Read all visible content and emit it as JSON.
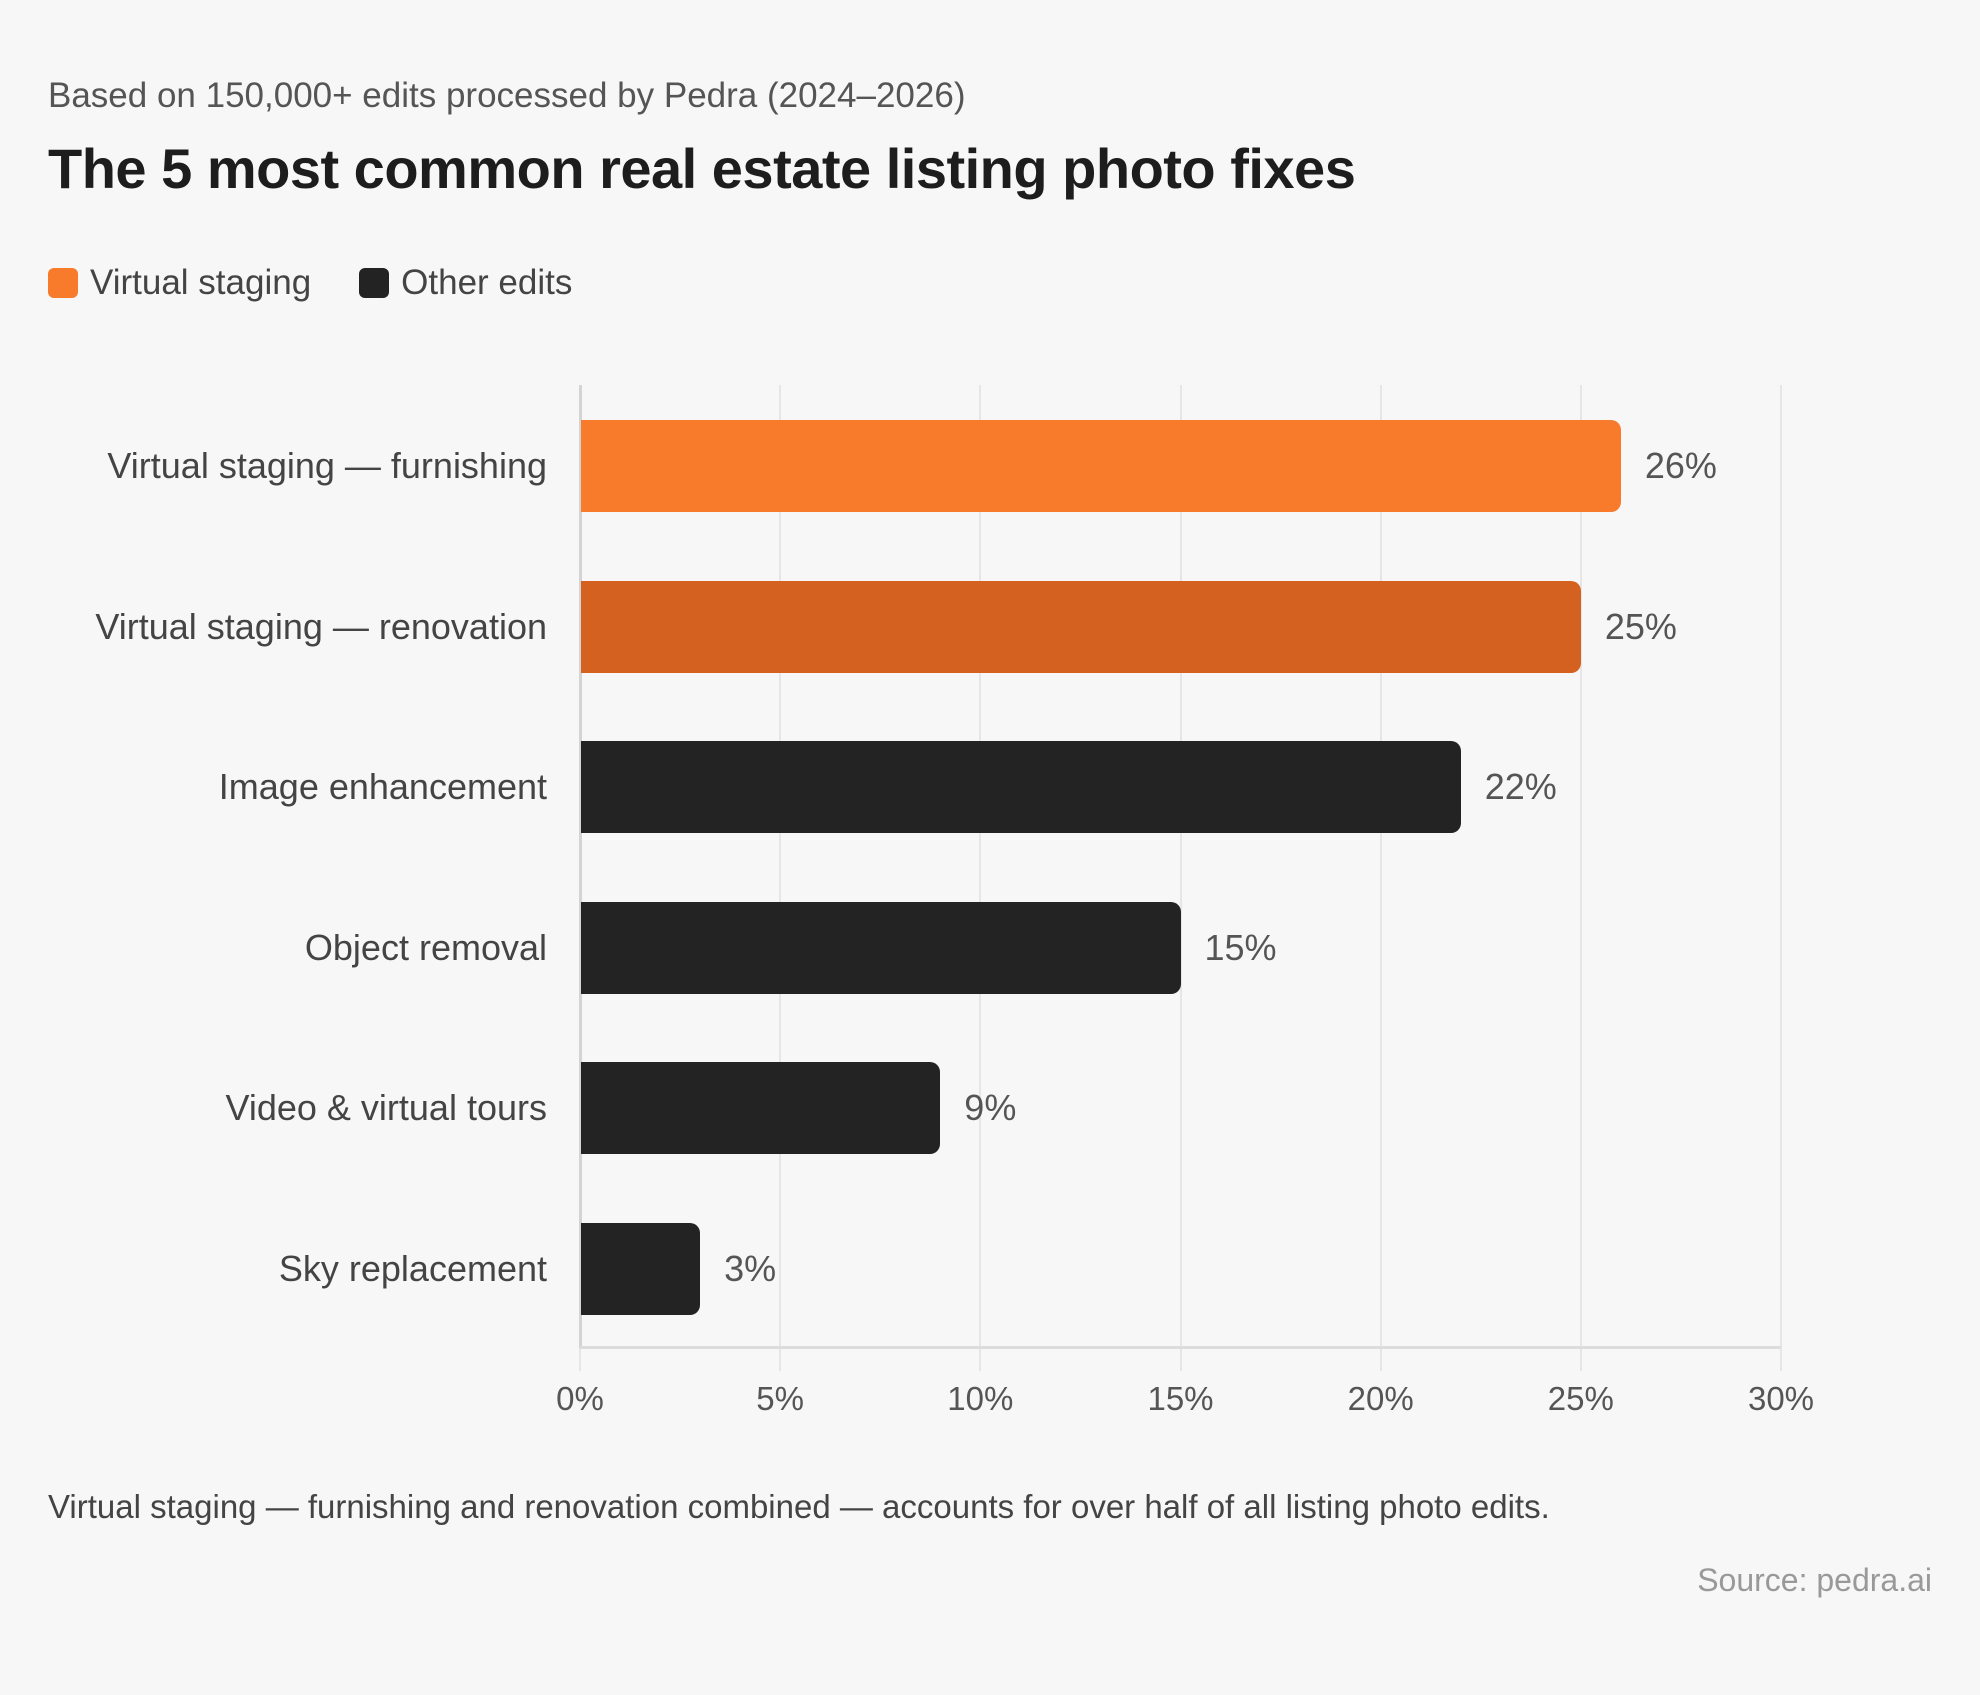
{
  "header": {
    "subtitle": "Based on 150,000+ edits processed by Pedra (2024–2026)",
    "title": "The 5 most common real estate listing photo fixes"
  },
  "legend": [
    {
      "label": "Virtual staging",
      "color": "#f77b2b"
    },
    {
      "label": "Other edits",
      "color": "#232323"
    }
  ],
  "footer": {
    "note": "Virtual staging — furnishing and renovation combined — accounts for over half of all listing photo edits.",
    "source": "Source: pedra.ai"
  },
  "chart_data": {
    "type": "bar",
    "orientation": "horizontal",
    "title": "The 5 most common real estate listing photo fixes",
    "subtitle": "Based on 150,000+ edits processed by Pedra (2024–2026)",
    "categories": [
      "Virtual staging — furnishing",
      "Virtual staging — renovation",
      "Image enhancement",
      "Object removal",
      "Video & virtual tours",
      "Sky replacement"
    ],
    "values": [
      26,
      25,
      22,
      15,
      9,
      3
    ],
    "value_labels": [
      "26%",
      "25%",
      "22%",
      "15%",
      "9%",
      "3%"
    ],
    "colors": [
      "#f77b2b",
      "#d4611f",
      "#232323",
      "#232323",
      "#232323",
      "#232323"
    ],
    "groups": [
      "Virtual staging",
      "Virtual staging",
      "Other edits",
      "Other edits",
      "Other edits",
      "Other edits"
    ],
    "xlabel": "",
    "ylabel": "",
    "xlim": [
      0,
      30
    ],
    "x_ticks": [
      "0%",
      "5%",
      "10%",
      "15%",
      "20%",
      "25%",
      "30%"
    ],
    "grid": true,
    "legend_position": "top-left",
    "legend": [
      "Virtual staging",
      "Other edits"
    ]
  }
}
